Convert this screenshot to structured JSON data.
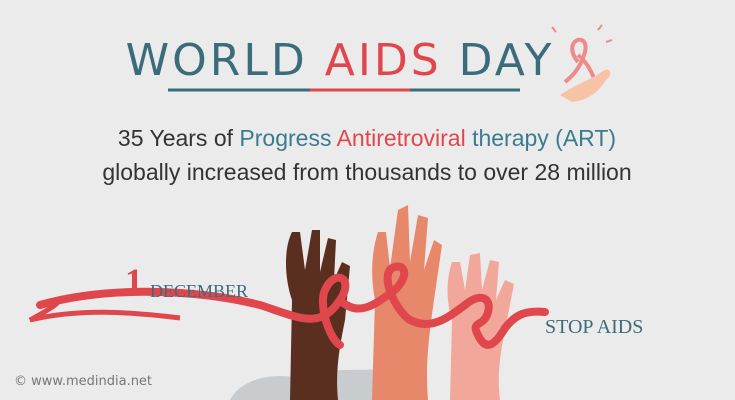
{
  "header": {
    "title": {
      "word1": "WORLD",
      "word2": "AIDS",
      "word3": "DAY"
    }
  },
  "message": {
    "line1": {
      "part1": "35 Years of",
      "part2": "Progress",
      "part3": "Antiretroviral",
      "part4": "therapy (ART)"
    },
    "line2": "globally increased from thousands to over 28 million"
  },
  "date": {
    "day": "1",
    "month": "DECEMBER"
  },
  "slogan": "STOP AIDS",
  "footer": {
    "credit": "© www.medindia.net"
  }
}
